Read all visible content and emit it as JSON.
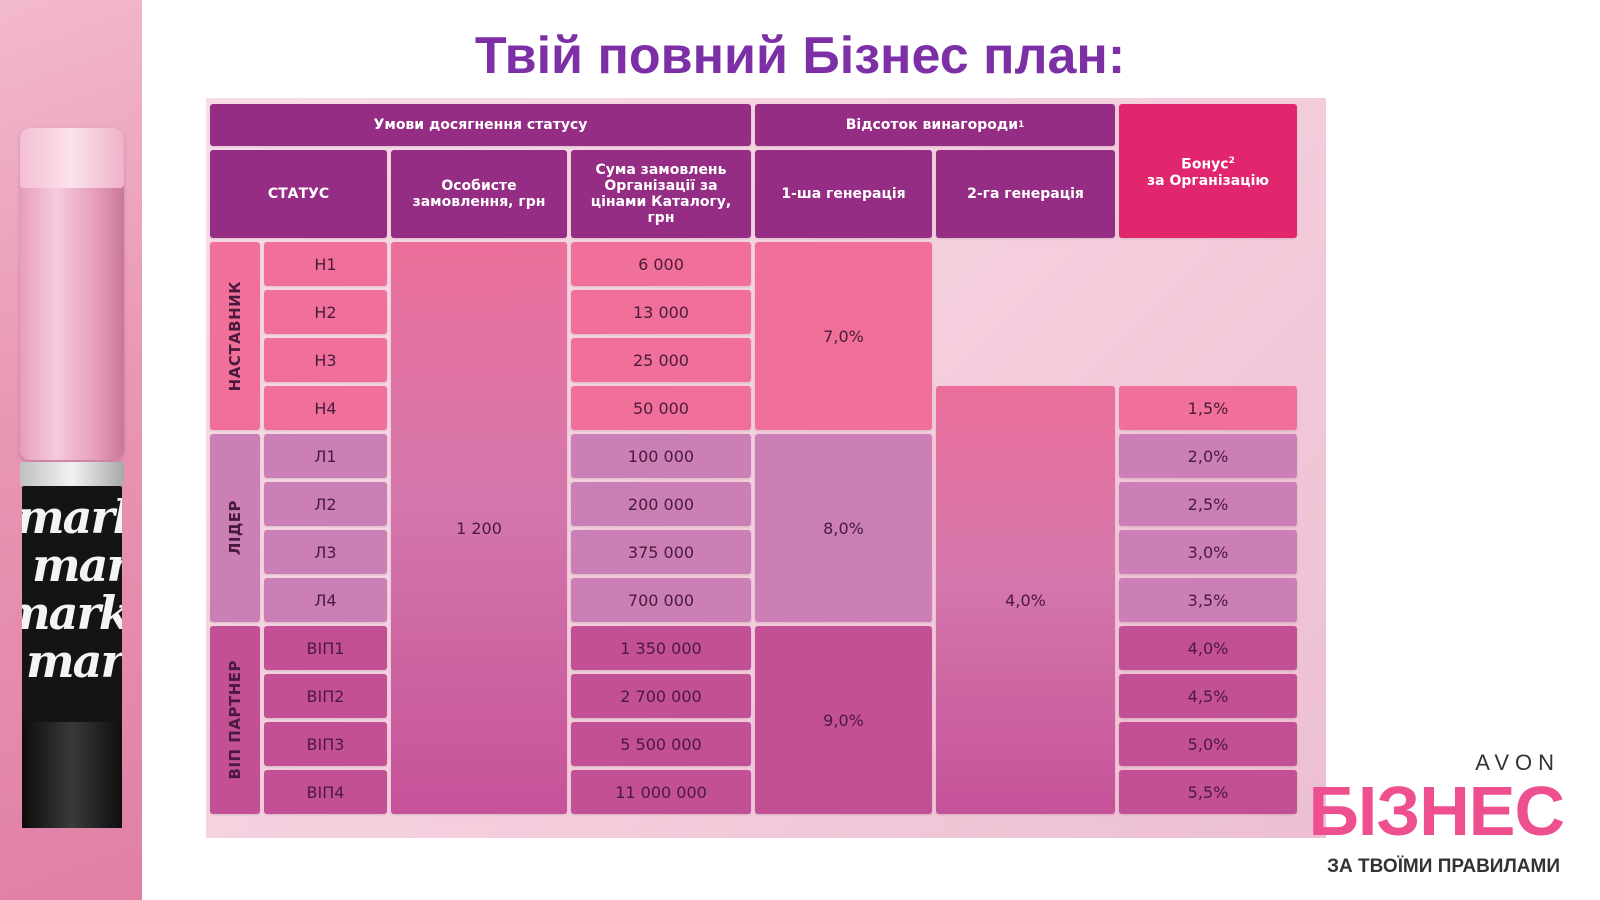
{
  "title": "Твій повний Бізнес план:",
  "headers": {
    "conditions": "Умови досягнення статусу",
    "reward_percent": "Відсоток винагороди",
    "reward_sup": "1",
    "bonus": "Бонус",
    "bonus_sup": "2",
    "bonus_line2": "за Організацію",
    "status": "СТАТУС",
    "personal_order": "Особисте замовлення, грн",
    "org_sum": "Сума замовлень Організації за цінами Каталогу, грн",
    "gen1": "1-ша генерація",
    "gen2": "2-га генерація"
  },
  "groups": [
    "НАСТАВНИК",
    "ЛІДЕР",
    "ВІП ПАРТНЕР"
  ],
  "statuses": [
    "Н1",
    "Н2",
    "Н3",
    "Н4",
    "Л1",
    "Л2",
    "Л3",
    "Л4",
    "ВІП1",
    "ВІП2",
    "ВІП3",
    "ВІП4"
  ],
  "org_sums": [
    "6 000",
    "13 000",
    "25 000",
    "50 000",
    "100 000",
    "200 000",
    "375 000",
    "700 000",
    "1 350 000",
    "2 700 000",
    "5 500 000",
    "11 000 000"
  ],
  "personal_order_value": "1 200",
  "gen1_values": [
    "7,0%",
    "8,0%",
    "9,0%"
  ],
  "gen2_value": "4,0%",
  "bonuses": [
    "1,5%",
    "2,0%",
    "2,5%",
    "3,0%",
    "3,5%",
    "4,0%",
    "4,5%",
    "5,0%",
    "5,5%"
  ],
  "brand": {
    "avon": "AVON",
    "name": "БІЗНЕС",
    "slogan": "ЗА ТВОЇМИ ПРАВИЛАМИ"
  },
  "decor": {
    "lipstick_text": "mark."
  },
  "colors": {
    "title": "#7d2fa6",
    "header": "#962d85",
    "bonus_header": "#e1266d",
    "nastavnyk": "#f07099",
    "lider": "#cb7fb5",
    "vip": "#c34f95",
    "brand_pink": "#ee4f8f"
  }
}
